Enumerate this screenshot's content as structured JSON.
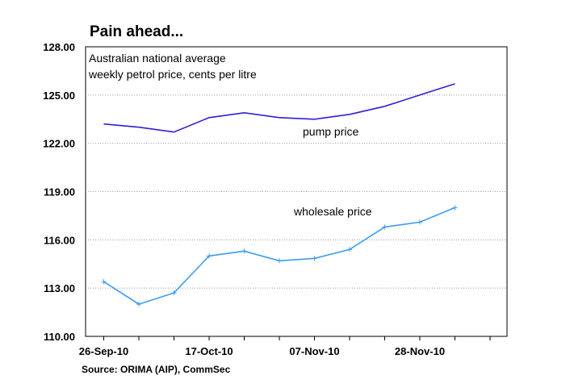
{
  "chart_data": {
    "type": "line",
    "title": "Pain ahead...",
    "subtitle": [
      "Australian national average",
      "weekly petrol price, cents per litre"
    ],
    "source": "Source: ORIMA (AIP), CommSec",
    "ylim": [
      110,
      128
    ],
    "yticks": [
      "110.00",
      "113.00",
      "116.00",
      "119.00",
      "122.00",
      "125.00",
      "128.00"
    ],
    "xtick_labels": [
      "26-Sep-10",
      "17-Oct-10",
      "07-Nov-10",
      "28-Nov-10"
    ],
    "grid": true,
    "x": [
      "26-Sep-10",
      "03-Oct-10",
      "10-Oct-10",
      "17-Oct-10",
      "24-Oct-10",
      "31-Oct-10",
      "07-Nov-10",
      "14-Nov-10",
      "21-Nov-10",
      "28-Nov-10",
      "05-Dec-10"
    ],
    "series": [
      {
        "name": "pump price",
        "color": "#2f1fd6",
        "values": [
          123.2,
          123.0,
          122.7,
          123.6,
          123.9,
          123.6,
          123.5,
          123.8,
          124.3,
          125.0,
          125.7
        ]
      },
      {
        "name": "wholesale price",
        "color": "#3d9cf0",
        "values": [
          113.4,
          112.0,
          112.7,
          115.0,
          115.3,
          114.7,
          114.85,
          115.4,
          116.8,
          117.1,
          118.0
        ]
      }
    ]
  }
}
